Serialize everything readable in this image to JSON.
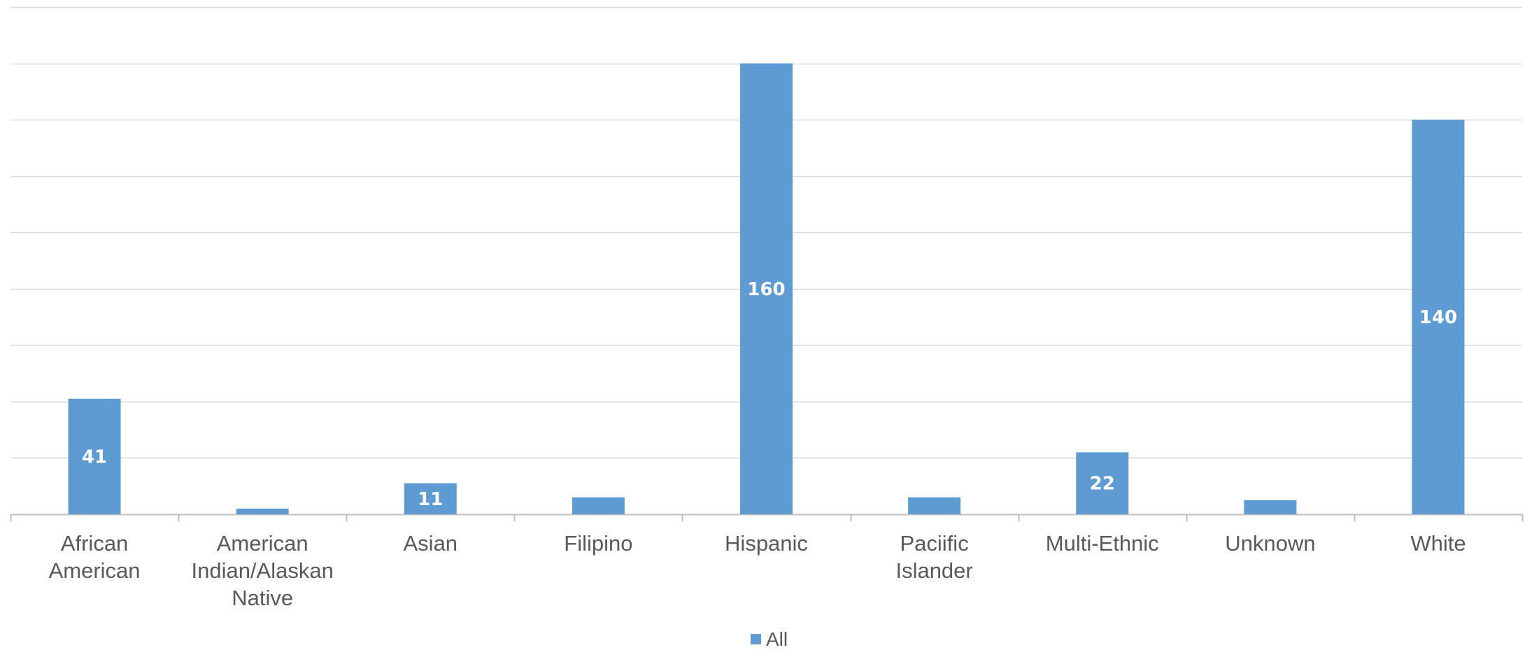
{
  "chart_data": {
    "type": "bar",
    "categories": [
      "African American",
      "American Indian/Alaskan Native",
      "Asian",
      "Filipino",
      "Hispanic",
      "Paciific Islander",
      "Multi-Ethnic",
      "Unknown",
      "White"
    ],
    "category_lines": [
      [
        "African",
        "American"
      ],
      [
        "American",
        "Indian/Alaskan",
        "Native"
      ],
      [
        "Asian"
      ],
      [
        "Filipino"
      ],
      [
        "Hispanic"
      ],
      [
        "Paciific",
        "Islander"
      ],
      [
        "Multi-Ethnic"
      ],
      [
        "Unknown"
      ],
      [
        "White"
      ]
    ],
    "series": [
      {
        "name": "All",
        "values": [
          41,
          2,
          11,
          6,
          160,
          6,
          22,
          5,
          140
        ],
        "data_labels": [
          "41",
          "",
          "11",
          "",
          "160",
          "",
          "22",
          "",
          "140"
        ]
      }
    ],
    "ylim": [
      0,
      180
    ],
    "gridline_step": 20,
    "grid": true,
    "legend": "bottom",
    "colors": {
      "bar": "#5f9bd3",
      "grid": "#d9d9d9",
      "axis": "#bfbfbf",
      "text": "#595959",
      "data_label": "#ffffff"
    }
  }
}
